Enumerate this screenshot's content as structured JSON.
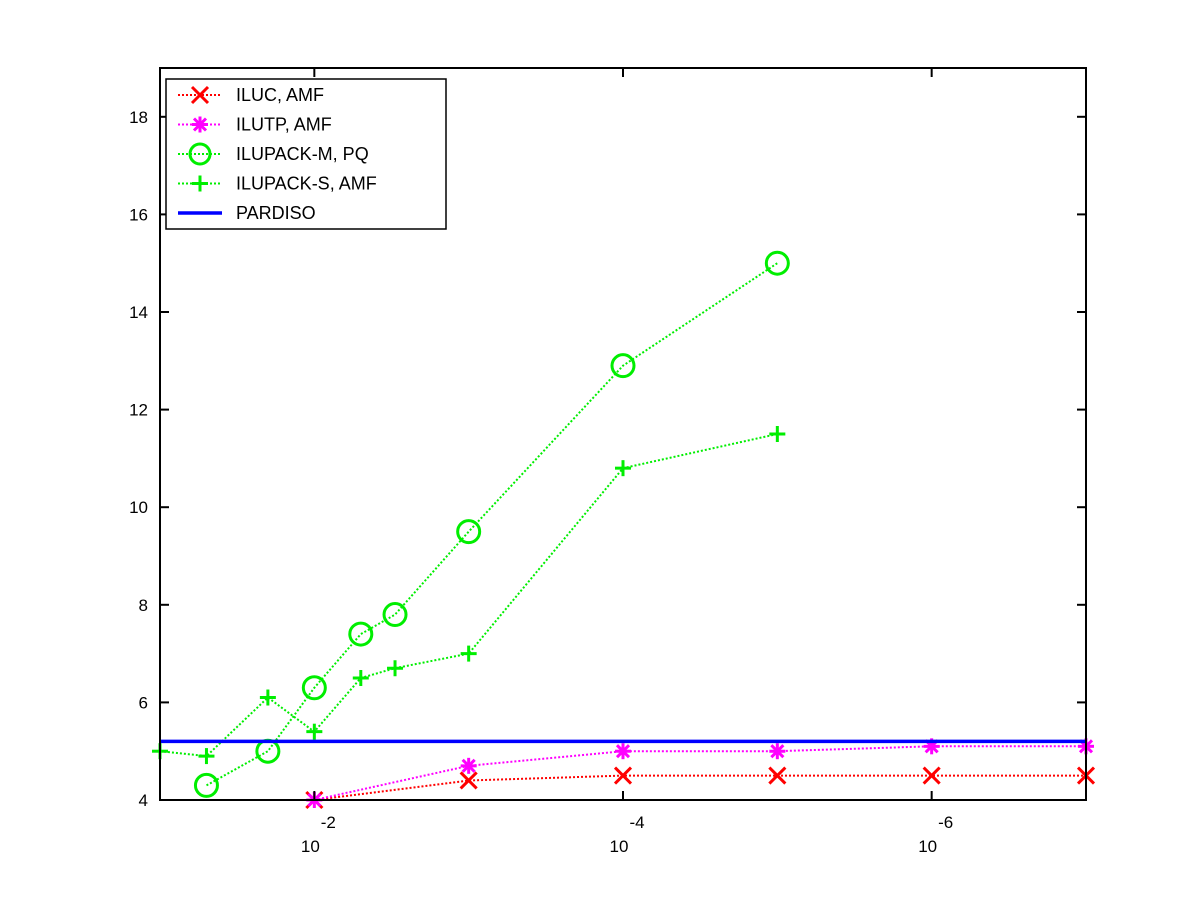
{
  "chart_data": {
    "type": "line",
    "title": "",
    "xlabel": "",
    "ylabel": "",
    "x_scale": "log",
    "x_direction": "reversed",
    "xlim": [
      0.1,
      1e-07
    ],
    "ylim": [
      4,
      19
    ],
    "x_ticks": [
      {
        "value": 0.01,
        "base": "10",
        "exponent": "-2"
      },
      {
        "value": 0.0001,
        "base": "10",
        "exponent": "-4"
      },
      {
        "value": 1e-06,
        "base": "10",
        "exponent": "-6"
      }
    ],
    "y_ticks": [
      {
        "value": 4,
        "label": "4"
      },
      {
        "value": 6,
        "label": "6"
      },
      {
        "value": 8,
        "label": "8"
      },
      {
        "value": 10,
        "label": "10"
      },
      {
        "value": 12,
        "label": "12"
      },
      {
        "value": 14,
        "label": "14"
      },
      {
        "value": 16,
        "label": "16"
      },
      {
        "value": 18,
        "label": "18"
      }
    ],
    "grid": false,
    "legend_position": "top-left",
    "series": [
      {
        "name": "ILUC, AMF",
        "color": "#ff0000",
        "marker": "x",
        "line_style": "dotted",
        "points": [
          {
            "x": 0.01,
            "y": 4.0
          },
          {
            "x": 0.001,
            "y": 4.4
          },
          {
            "x": 0.0001,
            "y": 4.5
          },
          {
            "x": 1e-05,
            "y": 4.5
          },
          {
            "x": 1e-06,
            "y": 4.5
          },
          {
            "x": 1e-07,
            "y": 4.5
          }
        ]
      },
      {
        "name": "ILUTP, AMF",
        "color": "#ff00ff",
        "marker": "asterisk",
        "line_style": "dotted",
        "points": [
          {
            "x": 0.01,
            "y": 4.0
          },
          {
            "x": 0.001,
            "y": 4.7
          },
          {
            "x": 0.0001,
            "y": 5.0
          },
          {
            "x": 1e-05,
            "y": 5.0
          },
          {
            "x": 1e-06,
            "y": 5.1
          },
          {
            "x": 1e-07,
            "y": 5.1
          }
        ]
      },
      {
        "name": "ILUPACK-M, PQ",
        "color": "#00ee00",
        "marker": "circle",
        "line_style": "dotted",
        "points": [
          {
            "x": 0.05,
            "y": 4.3
          },
          {
            "x": 0.02,
            "y": 5.0
          },
          {
            "x": 0.01,
            "y": 6.3
          },
          {
            "x": 0.005,
            "y": 7.4
          },
          {
            "x": 0.003,
            "y": 7.8
          },
          {
            "x": 0.001,
            "y": 9.5
          },
          {
            "x": 0.0001,
            "y": 12.9
          },
          {
            "x": 1e-05,
            "y": 15.0
          }
        ]
      },
      {
        "name": "ILUPACK-S, AMF",
        "color": "#00ee00",
        "marker": "plus",
        "line_style": "dotted",
        "points": [
          {
            "x": 0.1,
            "y": 5.0
          },
          {
            "x": 0.05,
            "y": 4.9
          },
          {
            "x": 0.02,
            "y": 6.1
          },
          {
            "x": 0.01,
            "y": 5.4
          },
          {
            "x": 0.005,
            "y": 6.5
          },
          {
            "x": 0.003,
            "y": 6.7
          },
          {
            "x": 0.001,
            "y": 7.0
          },
          {
            "x": 0.0001,
            "y": 10.8
          },
          {
            "x": 1e-05,
            "y": 11.5
          }
        ]
      },
      {
        "name": "PARDISO",
        "color": "#0000ff",
        "marker": "none",
        "line_style": "solid",
        "points": [
          {
            "x": 0.1,
            "y": 5.2
          },
          {
            "x": 1e-07,
            "y": 5.2
          }
        ]
      }
    ]
  }
}
